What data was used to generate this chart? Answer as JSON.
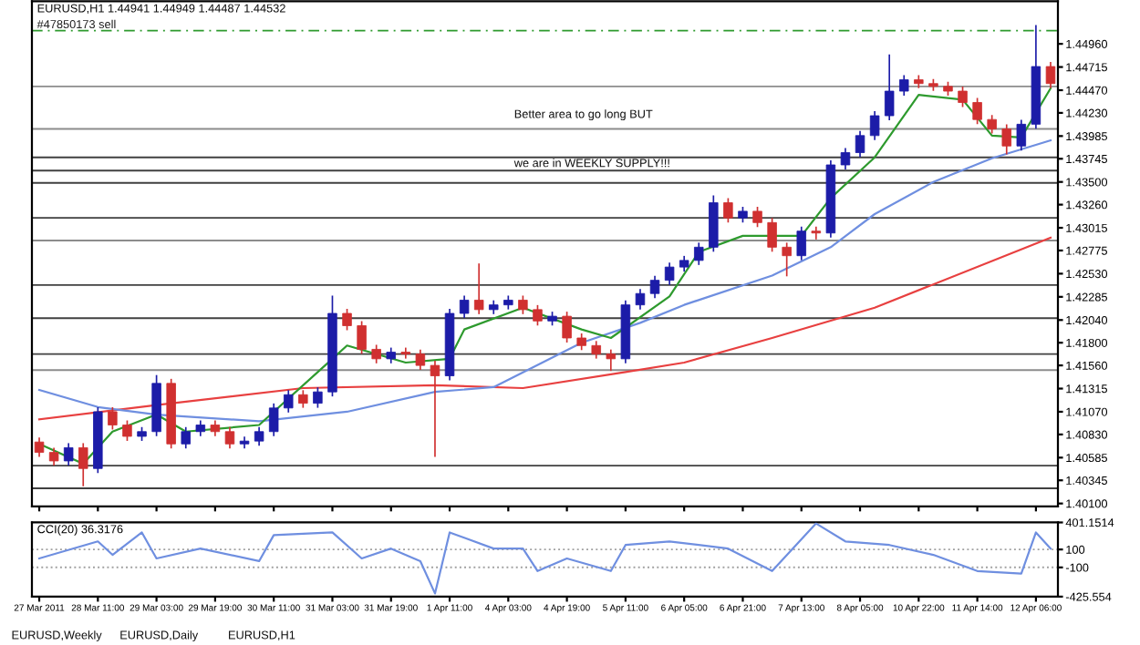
{
  "chart_data": [
    {
      "type": "candlestick",
      "categories": [
        "27 Mar 2011",
        null,
        null,
        null,
        "28 Mar 11:00",
        null,
        null,
        null,
        "29 Mar 03:00",
        null,
        null,
        null,
        "29 Mar 19:00",
        null,
        null,
        null,
        "30 Mar 11:00",
        null,
        null,
        null,
        "31 Mar 03:00",
        null,
        null,
        null,
        "31 Mar 19:00",
        null,
        null,
        null,
        "1 Apr 11:00",
        null,
        null,
        null,
        "4 Apr 03:00",
        null,
        null,
        null,
        "4 Apr 19:00",
        null,
        null,
        null,
        "5 Apr 11:00",
        null,
        null,
        null,
        "6 Apr 05:00",
        null,
        null,
        null,
        "6 Apr 21:00",
        null,
        null,
        null,
        "7 Apr 13:00",
        null,
        null,
        null,
        "8 Apr 05:00",
        null,
        null,
        null,
        "10 Apr 22:00",
        null,
        null,
        null,
        "11 Apr 14:00",
        null,
        null,
        null,
        "12 Apr 06:00",
        null
      ],
      "ohlc": [
        [
          1.4075,
          1.4079,
          1.406,
          1.4064
        ],
        [
          1.4064,
          1.4068,
          1.4051,
          1.4055
        ],
        [
          1.4055,
          1.4073,
          1.4051,
          1.4069
        ],
        [
          1.4069,
          1.4073,
          1.4029,
          1.4047
        ],
        [
          1.4047,
          1.4111,
          1.4043,
          1.4107
        ],
        [
          1.4107,
          1.4111,
          1.4089,
          1.4093
        ],
        [
          1.4093,
          1.4097,
          1.4077,
          1.4081
        ],
        [
          1.4081,
          1.409,
          1.4077,
          1.4086
        ],
        [
          1.4086,
          1.4145,
          1.4082,
          1.4137
        ],
        [
          1.4137,
          1.4141,
          1.4069,
          1.4073
        ],
        [
          1.4073,
          1.409,
          1.4069,
          1.4086
        ],
        [
          1.4086,
          1.4097,
          1.4082,
          1.4093
        ],
        [
          1.4093,
          1.4097,
          1.4082,
          1.4086
        ],
        [
          1.4086,
          1.409,
          1.4069,
          1.4073
        ],
        [
          1.4073,
          1.408,
          1.4069,
          1.4076
        ],
        [
          1.4076,
          1.409,
          1.4072,
          1.4086
        ],
        [
          1.4086,
          1.4115,
          1.4082,
          1.4111
        ],
        [
          1.4111,
          1.4129,
          1.4107,
          1.4125
        ],
        [
          1.4125,
          1.4129,
          1.4112,
          1.4116
        ],
        [
          1.4116,
          1.4132,
          1.4112,
          1.4128
        ],
        [
          1.4128,
          1.4229,
          1.4124,
          1.4211
        ],
        [
          1.4211,
          1.4215,
          1.4194,
          1.4198
        ],
        [
          1.4198,
          1.4202,
          1.4169,
          1.4173
        ],
        [
          1.4173,
          1.4177,
          1.4159,
          1.4163
        ],
        [
          1.4163,
          1.4174,
          1.4159,
          1.417
        ],
        [
          1.417,
          1.4174,
          1.4164,
          1.4168
        ],
        [
          1.4168,
          1.4172,
          1.4152,
          1.4156
        ],
        [
          1.4156,
          1.416,
          1.406,
          1.4145
        ],
        [
          1.4145,
          1.4215,
          1.4141,
          1.4211
        ],
        [
          1.4211,
          1.4229,
          1.4207,
          1.4225
        ],
        [
          1.4225,
          1.4263,
          1.4211,
          1.4215
        ],
        [
          1.4215,
          1.4224,
          1.4211,
          1.422
        ],
        [
          1.422,
          1.4229,
          1.4216,
          1.4225
        ],
        [
          1.4225,
          1.4229,
          1.4211,
          1.4215
        ],
        [
          1.4215,
          1.4219,
          1.4199,
          1.4203
        ],
        [
          1.4203,
          1.4212,
          1.4199,
          1.4208
        ],
        [
          1.4208,
          1.4212,
          1.4181,
          1.4185
        ],
        [
          1.4185,
          1.4189,
          1.4173,
          1.4177
        ],
        [
          1.4177,
          1.4181,
          1.4164,
          1.4168
        ],
        [
          1.4168,
          1.4172,
          1.4151,
          1.4163
        ],
        [
          1.4163,
          1.4224,
          1.4159,
          1.422
        ],
        [
          1.422,
          1.4236,
          1.4216,
          1.4232
        ],
        [
          1.4232,
          1.425,
          1.4228,
          1.4246
        ],
        [
          1.4246,
          1.4264,
          1.4242,
          1.426
        ],
        [
          1.426,
          1.4271,
          1.4256,
          1.4267
        ],
        [
          1.4267,
          1.4285,
          1.4263,
          1.4281
        ],
        [
          1.4281,
          1.4335,
          1.4277,
          1.4328
        ],
        [
          1.4328,
          1.4332,
          1.4308,
          1.4312
        ],
        [
          1.4312,
          1.4323,
          1.4308,
          1.4319
        ],
        [
          1.4319,
          1.4323,
          1.4303,
          1.4307
        ],
        [
          1.4307,
          1.4311,
          1.4277,
          1.4281
        ],
        [
          1.4281,
          1.4285,
          1.4251,
          1.4272
        ],
        [
          1.4272,
          1.4302,
          1.4268,
          1.4298
        ],
        [
          1.4298,
          1.4302,
          1.429,
          1.4296
        ],
        [
          1.4296,
          1.4372,
          1.4292,
          1.4368
        ],
        [
          1.4368,
          1.4385,
          1.4364,
          1.4381
        ],
        [
          1.4381,
          1.4403,
          1.4377,
          1.4399
        ],
        [
          1.4399,
          1.4424,
          1.4395,
          1.442
        ],
        [
          1.442,
          1.4484,
          1.4416,
          1.4446
        ],
        [
          1.4446,
          1.4462,
          1.4442,
          1.4458
        ],
        [
          1.4458,
          1.4462,
          1.445,
          1.4454
        ],
        [
          1.4454,
          1.4458,
          1.4447,
          1.4451
        ],
        [
          1.4451,
          1.4455,
          1.4442,
          1.4446
        ],
        [
          1.4446,
          1.445,
          1.443,
          1.4434
        ],
        [
          1.4434,
          1.4438,
          1.4412,
          1.4416
        ],
        [
          1.4416,
          1.442,
          1.4402,
          1.4406
        ],
        [
          1.4406,
          1.441,
          1.438,
          1.4388
        ],
        [
          1.4388,
          1.4415,
          1.4384,
          1.4411
        ],
        [
          1.4411,
          1.4515,
          1.4407,
          1.4472
        ],
        [
          1.4472,
          1.4476,
          1.445,
          1.4454
        ]
      ],
      "series": [
        {
          "type": "line",
          "color": "#e84040",
          "values": [
            1.4099,
            null,
            null,
            null,
            null,
            null,
            null,
            null,
            1.4114,
            null,
            null,
            null,
            null,
            null,
            null,
            null,
            null,
            null,
            1.4132,
            null,
            null,
            null,
            null,
            null,
            null,
            null,
            null,
            1.4135,
            null,
            null,
            null,
            null,
            null,
            1.4132,
            null,
            null,
            null,
            null,
            null,
            null,
            1.4149,
            null,
            null,
            null,
            1.4159,
            null,
            null,
            null,
            null,
            null,
            1.4185,
            null,
            null,
            null,
            null,
            null,
            null,
            1.4217,
            null,
            null,
            null,
            null,
            null,
            null,
            null,
            null,
            null,
            null,
            null,
            1.4291
          ]
        },
        {
          "type": "line",
          "color": "#6f8fe0",
          "values": [
            1.413,
            null,
            null,
            null,
            1.4112,
            null,
            null,
            null,
            1.4104,
            null,
            null,
            null,
            null,
            null,
            null,
            1.4097,
            null,
            null,
            null,
            null,
            null,
            1.4107,
            null,
            null,
            null,
            null,
            null,
            1.4128,
            null,
            null,
            null,
            1.4133,
            null,
            null,
            null,
            null,
            null,
            1.418,
            null,
            null,
            null,
            1.4201,
            null,
            null,
            1.422,
            null,
            null,
            null,
            null,
            null,
            1.4251,
            null,
            null,
            null,
            1.4281,
            null,
            null,
            1.4316,
            null,
            null,
            null,
            1.435,
            null,
            null,
            null,
            1.4375,
            null,
            null,
            null,
            1.4394
          ]
        },
        {
          "type": "line",
          "color": "#2e9a2e",
          "values": [
            1.4073,
            null,
            null,
            1.4052,
            null,
            1.4086,
            null,
            null,
            1.4104,
            null,
            1.4086,
            null,
            null,
            null,
            null,
            1.4093,
            null,
            null,
            null,
            null,
            1.4163,
            1.4177,
            null,
            null,
            null,
            1.4159,
            null,
            null,
            1.4163,
            1.4194,
            null,
            null,
            null,
            1.4217,
            null,
            null,
            null,
            1.4194,
            null,
            1.4185,
            null,
            null,
            null,
            1.4229,
            null,
            1.4276,
            null,
            null,
            1.4293,
            null,
            null,
            null,
            1.4293,
            null,
            1.4333,
            null,
            null,
            1.4376,
            null,
            null,
            1.4442,
            null,
            null,
            1.4437,
            null,
            1.4399,
            null,
            1.4397,
            null,
            1.4449
          ]
        }
      ],
      "ylim": [
        1.4007,
        1.4541
      ],
      "yticks": [
        {
          "value": 1.401,
          "label": "1.40100"
        },
        {
          "value": 1.40345,
          "label": "1.40345"
        },
        {
          "value": 1.40585,
          "label": "1.40585"
        },
        {
          "value": 1.4083,
          "label": "1.40830"
        },
        {
          "value": 1.4107,
          "label": "1.41070"
        },
        {
          "value": 1.41315,
          "label": "1.41315"
        },
        {
          "value": 1.4156,
          "label": "1.41560"
        },
        {
          "value": 1.418,
          "label": "1.41800"
        },
        {
          "value": 1.4204,
          "label": "1.42040"
        },
        {
          "value": 1.42285,
          "label": "1.42285"
        },
        {
          "value": 1.4253,
          "label": "1.42530"
        },
        {
          "value": 1.42775,
          "label": "1.42775"
        },
        {
          "value": 1.43015,
          "label": "1.43015"
        },
        {
          "value": 1.4326,
          "label": "1.43260"
        },
        {
          "value": 1.435,
          "label": "1.43500"
        },
        {
          "value": 1.43745,
          "label": "1.43745"
        },
        {
          "value": 1.43985,
          "label": "1.43985"
        },
        {
          "value": 1.4423,
          "label": "1.44230"
        },
        {
          "value": 1.4447,
          "label": "1.44470"
        },
        {
          "value": 1.44715,
          "label": "1.44715"
        },
        {
          "value": 1.4496,
          "label": "1.44960"
        }
      ],
      "tick_labels": "y",
      "ref_lines": [
        {
          "axis": "y",
          "value": 1.451,
          "label": "#47850173 sell",
          "color": "#2e9a2e",
          "line_style": "dashed"
        },
        {
          "axis": "y",
          "value": 1.4451,
          "color": "#8c8c8c"
        },
        {
          "axis": "y",
          "value": 1.4406,
          "color": "#8c8c8c"
        },
        {
          "axis": "y",
          "value": 1.4376,
          "color": "#404040"
        },
        {
          "axis": "y",
          "value": 1.4362,
          "color": "#404040"
        },
        {
          "axis": "y",
          "value": 1.4349,
          "color": "#404040"
        },
        {
          "axis": "y",
          "value": 1.4312,
          "color": "#404040"
        },
        {
          "axis": "y",
          "value": 1.4288,
          "color": "#8c8c8c"
        },
        {
          "axis": "y",
          "value": 1.4241,
          "color": "#404040"
        },
        {
          "axis": "y",
          "value": 1.4206,
          "color": "#404040"
        },
        {
          "axis": "y",
          "value": 1.4168,
          "color": "#404040"
        },
        {
          "axis": "y",
          "value": 1.4151,
          "color": "#8c8c8c"
        },
        {
          "axis": "y",
          "value": 1.405,
          "color": "#404040"
        },
        {
          "axis": "y",
          "value": 1.4026,
          "color": "#404040"
        }
      ],
      "annotations": [
        "EURUSD,H1 1.44941 1.44949 1.44487 1.44532",
        "Better area to go long BUT",
        "we are in WEEKLY SUPPLY!!!",
        "EURUSD,Weekly",
        "EURUSD,Daily",
        "EURUSD,H1"
      ],
      "grid": false,
      "legend": false
    },
    {
      "type": "line",
      "title": "CCI(20) 36.3176",
      "series": [
        {
          "color": "#6f8fe0",
          "values": [
            0,
            null,
            null,
            null,
            190,
            40,
            null,
            290,
            0,
            null,
            null,
            110,
            null,
            null,
            null,
            -30,
            260,
            null,
            null,
            null,
            290,
            null,
            0,
            null,
            110,
            null,
            -30,
            -390,
            290,
            null,
            null,
            110,
            null,
            110,
            -140,
            null,
            0,
            null,
            null,
            -140,
            150,
            null,
            null,
            190,
            null,
            null,
            null,
            110,
            null,
            null,
            -140,
            null,
            null,
            390,
            null,
            190,
            null,
            null,
            150,
            null,
            null,
            40,
            null,
            null,
            -140,
            null,
            null,
            -170,
            290,
            110
          ]
        }
      ],
      "ylim": [
        -425.554,
        401.1514
      ],
      "yticks": [
        {
          "value": 401.1514,
          "label": "401.1514"
        },
        100,
        -100,
        {
          "value": -425.554,
          "label": "-425.554"
        }
      ],
      "ref_lines": [
        {
          "axis": "y",
          "value": 100,
          "color": "#a0a0a0",
          "line_style": "dotted"
        },
        {
          "axis": "y",
          "value": -100,
          "color": "#a0a0a0",
          "line_style": "dotted"
        }
      ],
      "grid": false,
      "legend": false
    }
  ]
}
